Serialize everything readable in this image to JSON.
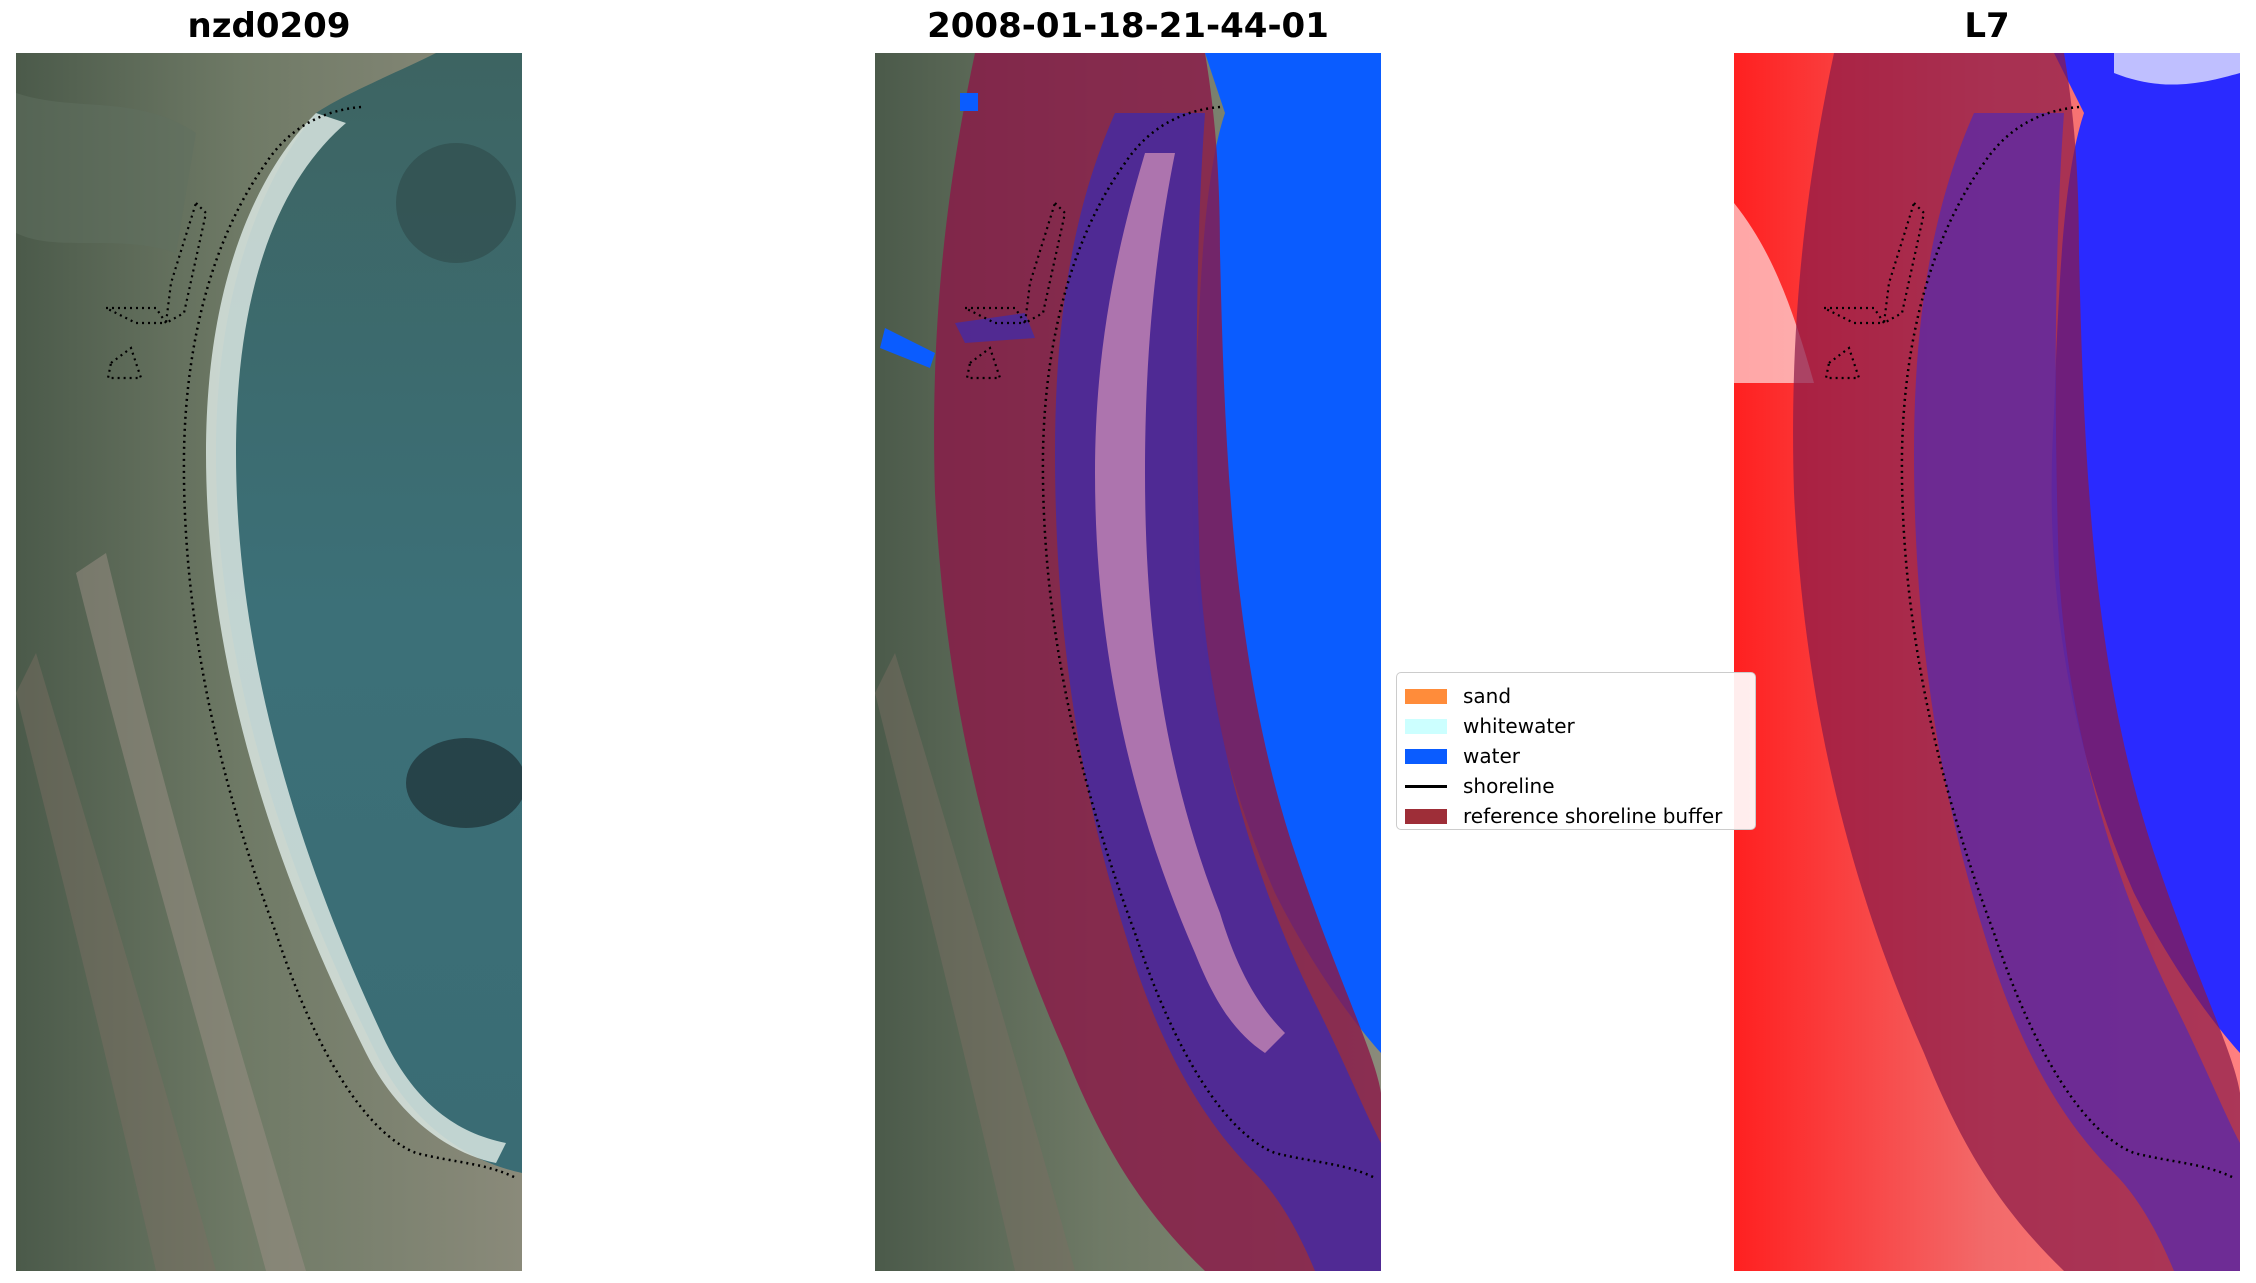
{
  "panels": [
    {
      "title": "nzd0209"
    },
    {
      "title": "2008-01-18-21-44-01"
    },
    {
      "title": "L7"
    }
  ],
  "legend": {
    "items": [
      {
        "label": "sand",
        "color": "#ff8c3a",
        "kind": "patch"
      },
      {
        "label": "whitewater",
        "color": "#ccffff",
        "kind": "patch"
      },
      {
        "label": "water",
        "color": "#0a5cff",
        "kind": "patch"
      },
      {
        "label": "shoreline",
        "color": "#000000",
        "kind": "line"
      },
      {
        "label": "reference shoreline buffer",
        "color": "#9e2e38",
        "kind": "patch"
      }
    ]
  }
}
